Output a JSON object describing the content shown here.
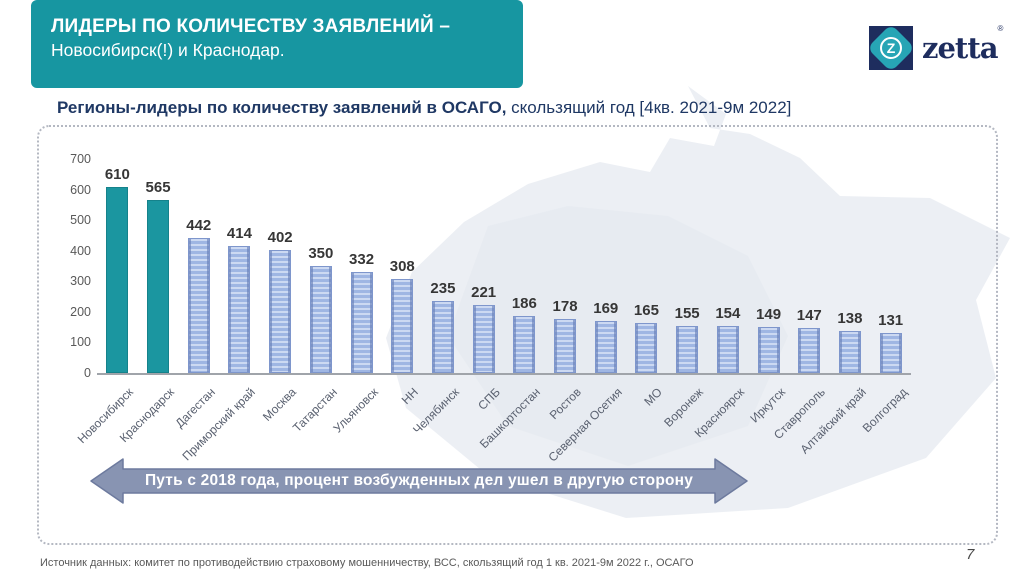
{
  "slide": {
    "header": {
      "title_bold": "ЛИДЕРЫ ПО КОЛИЧЕСТВУ ЗАЯВЛЕНИЙ –",
      "subtitle": "Новосибирск(!) и Краснодар.",
      "bg_color": "#1796a1"
    },
    "logo": {
      "brand": "zetta",
      "letter": "Z",
      "registered": "®",
      "navy": "#1e2d5e",
      "teal": "#27a5b5"
    },
    "chart_heading": {
      "bold": "Регионы-лидеры по количеству заявлений в ОСАГО,",
      "regular": " скользящий год [4кв. 2021-9м 2022]"
    },
    "banner": {
      "text": "Путь с 2018 года, процент возбужденных дел ушел в другую сторону",
      "fill": "#8894b2",
      "stroke": "#6d7a9e"
    },
    "footer": {
      "source": "Источник данных: комитет по противодействию страховому мошенничеству, ВСС, скользящий год 1 кв. 2021-9м 2022 г., ОСАГО",
      "page_number": "7"
    }
  },
  "chart_data": {
    "type": "bar",
    "title": "Регионы-лидеры по количеству заявлений в ОСАГО, скользящий год [4кв. 2021-9м 2022]",
    "categories": [
      "Новосибирск",
      "Краснодарск",
      "Дагестан",
      "Приморский край",
      "Москва",
      "Татарстан",
      "Ульяновск",
      "НН",
      "Челябинск",
      "СПБ",
      "Башкортостан",
      "Ростов",
      "Северная Осетия",
      "МО",
      "Воронеж",
      "Красноярск",
      "Иркутск",
      "Ставрополь",
      "Алтайский край",
      "Волгоград"
    ],
    "values": [
      610,
      565,
      442,
      414,
      402,
      350,
      332,
      308,
      235,
      221,
      186,
      178,
      169,
      165,
      155,
      154,
      149,
      147,
      138,
      131
    ],
    "highlight_count": 2,
    "highlight_color": "#1b96a0",
    "bar_color": "#a2b8e2",
    "xlabel": "",
    "ylabel": "",
    "ylim": [
      0,
      700
    ],
    "yticks": [
      0,
      100,
      200,
      300,
      400,
      500,
      600,
      700
    ],
    "grid": false,
    "legend": "none",
    "data_labels": true
  }
}
